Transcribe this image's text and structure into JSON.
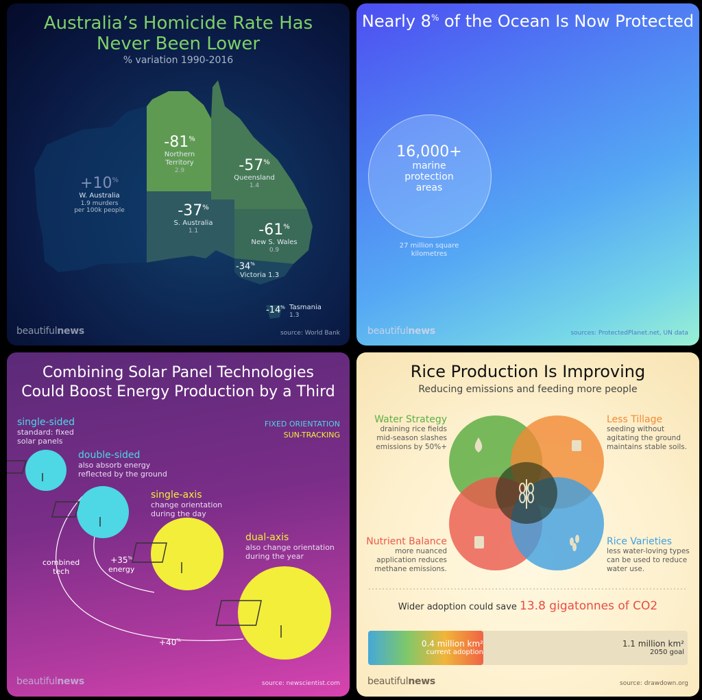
{
  "brand": {
    "light": "beautiful",
    "bold": "news"
  },
  "australia": {
    "title_line1": "Australia’s Homicide Rate Has",
    "title_line2": "Never Been Lower",
    "subtitle": "% variation 1990-2016",
    "regions": [
      {
        "pct": "+10",
        "name": "W. Australia",
        "rate": "1.9 murders",
        "rate2": "per 100k people"
      },
      {
        "pct": "-81",
        "name": "Northern",
        "name2": "Territory",
        "rate": "2.9"
      },
      {
        "pct": "-57",
        "name": "Queensland",
        "rate": "1.4"
      },
      {
        "pct": "-37",
        "name": "S. Australia",
        "rate": "1.1"
      },
      {
        "pct": "-61",
        "name": "New S. Wales",
        "rate": "0.9"
      },
      {
        "pct": "-34",
        "name": "Victoria",
        "rate": "1.3"
      },
      {
        "pct": "-14",
        "name": "Tasmania",
        "rate": "1.3"
      }
    ],
    "pct_sign": "%",
    "source": "source: World Bank",
    "colors": {
      "positive": "#0f3a6a",
      "strong": "#5f9a52",
      "medium": "#467a56",
      "light": "#3a6a58"
    }
  },
  "ocean": {
    "title_pre": "Nearly 8",
    "title_pct": "%",
    "title_post": " of the Ocean Is Now Protected",
    "bubble_number": "16,000+",
    "bubble_l1": "marine",
    "bubble_l2": "protection",
    "bubble_l3": "areas",
    "caption_l1": "27 million square",
    "caption_l2": "kilometres",
    "source": "sources: ProtectedPlanet.net, UN data"
  },
  "solar": {
    "title_line1": "Combining Solar Panel Technologies",
    "title_line2": "Could Boost Energy Production by a Third",
    "legend_fixed": "FIXED ORIENTATION",
    "legend_tracking": "SUN-TRACKING",
    "items": [
      {
        "name": "single-sided",
        "desc1": "standard: fixed",
        "desc2": "solar panels"
      },
      {
        "name": "double-sided",
        "desc1": "also absorb energy",
        "desc2": "reflected by the ground"
      },
      {
        "name": "single-axis",
        "desc1": "change orientation",
        "desc2": "during the day"
      },
      {
        "name": "dual-axis",
        "desc1": "also change orientation",
        "desc2": "during the year"
      }
    ],
    "combined_l1": "combined",
    "combined_l2": "tech",
    "gain1": "+35",
    "gain1_label": "energy",
    "gain2": "+40",
    "pct_sign": "%",
    "source": "source: newscientist.com",
    "colors": {
      "cyan": "#4ed7e4",
      "yellow": "#f3ee3a"
    }
  },
  "rice": {
    "title": "Rice Production Is Improving",
    "subtitle": "Reducing emissions and feeding more people",
    "strategies": [
      {
        "name": "Water Strategy",
        "l1": "draining rice fields",
        "l2": "mid-season slashes",
        "l3": "emissions by 50%+",
        "color": "#5fae45"
      },
      {
        "name": "Less Tillage",
        "l1": "seeding without",
        "l2": "agitating the ground",
        "l3": "maintains stable soils.",
        "color": "#f08a34"
      },
      {
        "name": "Nutrient Balance",
        "l1": "more nuanced",
        "l2": "application reduces",
        "l3": "methane emissions.",
        "color": "#ea5a4e"
      },
      {
        "name": "Rice Varieties",
        "l1": "less water-loving types",
        "l2": "can be used to reduce",
        "l3": "water use.",
        "color": "#3f9fe0"
      }
    ],
    "save_pre": "Wider adoption could save ",
    "save_value": "13.8 gigatonnes of CO2",
    "current_value": "0.4 million km²",
    "current_label": "current adoption",
    "goal_value": "1.1 million km²",
    "goal_label": "2050 goal",
    "progress_fraction": 0.36,
    "source": "source: drawdown.org"
  }
}
